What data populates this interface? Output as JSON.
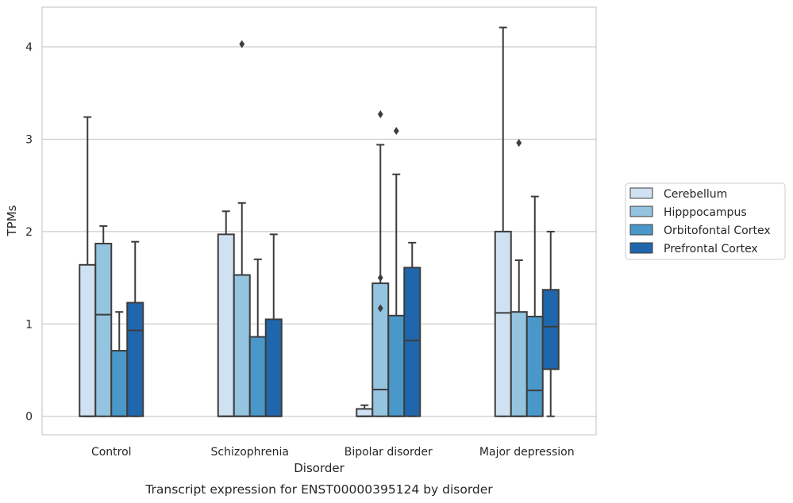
{
  "chart_data": {
    "type": "box",
    "xlabel": "Disorder",
    "ylabel": "TPMs",
    "caption": "Transcript expression for ENST00000395124 by disorder",
    "ylim": [
      -0.2,
      4.43
    ],
    "yticks": [
      0,
      1,
      2,
      3,
      4
    ],
    "grid": "horizontal",
    "legend_position": "right",
    "categories": [
      "Control",
      "Schizophrenia",
      "Bipolar disorder",
      "Major depression"
    ],
    "series": [
      {
        "name": "Cerebellum",
        "color": "#d0e1f2",
        "boxes": [
          {
            "whislo": 0,
            "q1": 0,
            "med": 0,
            "q3": 1.64,
            "whishi": 3.24,
            "fliers": []
          },
          {
            "whislo": 0,
            "q1": 0,
            "med": 0,
            "q3": 1.97,
            "whishi": 2.22,
            "fliers": []
          },
          {
            "whislo": 0,
            "q1": 0,
            "med": 0,
            "q3": 0.08,
            "whishi": 0.12,
            "fliers": []
          },
          {
            "whislo": 0,
            "q1": 0,
            "med": 1.12,
            "q3": 2.0,
            "whishi": 4.21,
            "fliers": []
          }
        ]
      },
      {
        "name": "Hipppocampus",
        "color": "#94c4df",
        "boxes": [
          {
            "whislo": 0,
            "q1": 0,
            "med": 1.1,
            "q3": 1.87,
            "whishi": 2.06,
            "fliers": []
          },
          {
            "whislo": 0,
            "q1": 0,
            "med": 0,
            "q3": 1.53,
            "whishi": 2.31,
            "fliers": [
              4.03
            ]
          },
          {
            "whislo": 0,
            "q1": 0,
            "med": 0.29,
            "q3": 1.44,
            "whishi": 2.94,
            "fliers": [
              3.27,
              1.5,
              1.17
            ]
          },
          {
            "whislo": 0,
            "q1": 0,
            "med": 0,
            "q3": 1.13,
            "whishi": 1.69,
            "fliers": [
              2.96
            ]
          }
        ]
      },
      {
        "name": "Orbitofontal Cortex",
        "color": "#4a98c9",
        "boxes": [
          {
            "whislo": 0,
            "q1": 0,
            "med": 0,
            "q3": 0.71,
            "whishi": 1.13,
            "fliers": []
          },
          {
            "whislo": 0,
            "q1": 0,
            "med": 0,
            "q3": 0.86,
            "whishi": 1.7,
            "fliers": []
          },
          {
            "whislo": 0,
            "q1": 0,
            "med": 0,
            "q3": 1.09,
            "whishi": 2.62,
            "fliers": [
              3.09
            ]
          },
          {
            "whislo": 0,
            "q1": 0,
            "med": 0.28,
            "q3": 1.08,
            "whishi": 2.38,
            "fliers": []
          }
        ]
      },
      {
        "name": "Prefrontal Cortex",
        "color": "#2066ac",
        "boxes": [
          {
            "whislo": 0,
            "q1": 0,
            "med": 0.93,
            "q3": 1.23,
            "whishi": 1.89,
            "fliers": []
          },
          {
            "whislo": 0,
            "q1": 0,
            "med": 0,
            "q3": 1.05,
            "whishi": 1.97,
            "fliers": []
          },
          {
            "whislo": 0,
            "q1": 0,
            "med": 0.82,
            "q3": 1.61,
            "whishi": 1.88,
            "fliers": []
          },
          {
            "whislo": 0,
            "q1": 0.51,
            "med": 0.97,
            "q3": 1.37,
            "whishi": 2.0,
            "fliers": []
          }
        ]
      }
    ]
  }
}
